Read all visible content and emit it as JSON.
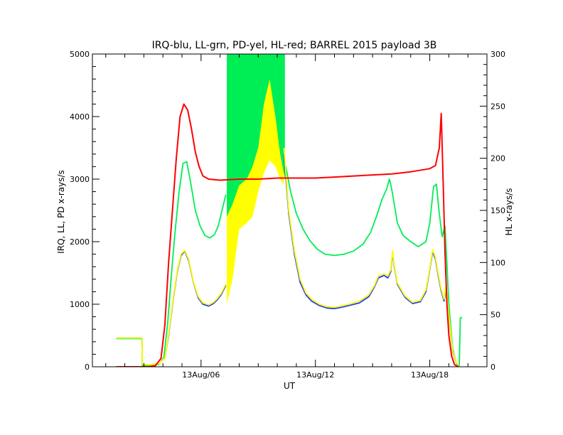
{
  "chart_data": {
    "type": "line",
    "title": "IRQ-blu, LL-grn, PD-yel, HL-red; BARREL 2015 payload 3B",
    "xlabel": "UT",
    "ylabel_left": "IRQ, LL, PD x-rays/s",
    "ylabel_right": "HL x-rays/s",
    "x_unit": "hours since 2015-08-13T00 (UT)",
    "xlim": [
      0.3,
      21.0
    ],
    "ylim_left": [
      0,
      5000
    ],
    "ylim_right": [
      0,
      300
    ],
    "x_tick_labels": [
      {
        "x": 6,
        "label": "13Aug/06"
      },
      {
        "x": 12,
        "label": "13Aug/12"
      },
      {
        "x": 18,
        "label": "13Aug/18"
      }
    ],
    "left_ticks": [
      0,
      1000,
      2000,
      3000,
      4000,
      5000
    ],
    "left_tick_labels": [
      "0",
      "1000",
      "2000",
      "3000",
      "4000",
      "5000"
    ],
    "right_ticks": [
      0,
      50,
      100,
      150,
      200,
      250,
      300
    ],
    "right_tick_labels": [
      "0",
      "50",
      "100",
      "150",
      "200",
      "250",
      "300"
    ],
    "grid": false,
    "series": [
      {
        "name": "IRQ",
        "color": "#1e3cff",
        "axis": "left",
        "points": [
          [
            1.55,
            460
          ],
          [
            2.9,
            460
          ],
          [
            2.92,
            40
          ],
          [
            3.3,
            30
          ],
          [
            3.8,
            50
          ],
          [
            4.1,
            140
          ],
          [
            4.3,
            500
          ],
          [
            4.55,
            1100
          ],
          [
            4.75,
            1520
          ],
          [
            4.95,
            1780
          ],
          [
            5.15,
            1850
          ],
          [
            5.35,
            1700
          ],
          [
            5.6,
            1350
          ],
          [
            5.85,
            1100
          ],
          [
            6.1,
            1000
          ],
          [
            6.4,
            970
          ],
          [
            6.65,
            1010
          ],
          [
            6.85,
            1070
          ],
          [
            7.05,
            1150
          ],
          [
            7.3,
            1300
          ]
        ]
      },
      {
        "name": "IRQ",
        "color": "#1e3cff",
        "axis": "left",
        "points": [
          [
            10.35,
            3400
          ],
          [
            10.6,
            2450
          ],
          [
            10.9,
            1800
          ],
          [
            11.2,
            1350
          ],
          [
            11.5,
            1150
          ],
          [
            11.8,
            1050
          ],
          [
            12.2,
            980
          ],
          [
            12.6,
            940
          ],
          [
            13.0,
            930
          ],
          [
            13.5,
            960
          ],
          [
            13.9,
            990
          ],
          [
            14.3,
            1020
          ],
          [
            14.8,
            1120
          ],
          [
            15.1,
            1280
          ],
          [
            15.3,
            1420
          ],
          [
            15.6,
            1460
          ],
          [
            15.8,
            1420
          ],
          [
            15.95,
            1520
          ],
          [
            16.05,
            1830
          ],
          [
            16.12,
            1640
          ],
          [
            16.3,
            1320
          ],
          [
            16.7,
            1110
          ],
          [
            17.1,
            1010
          ],
          [
            17.5,
            1040
          ],
          [
            17.8,
            1200
          ],
          [
            18.0,
            1560
          ],
          [
            18.15,
            1840
          ],
          [
            18.3,
            1720
          ],
          [
            18.45,
            1450
          ],
          [
            18.6,
            1210
          ],
          [
            18.75,
            1050
          ],
          [
            18.85,
            1250
          ],
          [
            19.0,
            800
          ],
          [
            19.2,
            250
          ],
          [
            19.4,
            50
          ],
          [
            19.55,
            20
          ]
        ]
      },
      {
        "name": "LL",
        "color": "#00ee55",
        "axis": "left",
        "points": [
          [
            1.55,
            450
          ],
          [
            2.9,
            450
          ],
          [
            2.92,
            20
          ],
          [
            3.3,
            15
          ],
          [
            3.8,
            40
          ],
          [
            4.05,
            150
          ],
          [
            4.25,
            700
          ],
          [
            4.45,
            1500
          ],
          [
            4.65,
            2200
          ],
          [
            4.85,
            2800
          ],
          [
            5.05,
            3250
          ],
          [
            5.25,
            3280
          ],
          [
            5.45,
            2950
          ],
          [
            5.7,
            2500
          ],
          [
            5.95,
            2250
          ],
          [
            6.2,
            2100
          ],
          [
            6.45,
            2060
          ],
          [
            6.7,
            2110
          ],
          [
            6.9,
            2250
          ],
          [
            7.1,
            2500
          ],
          [
            7.3,
            2750
          ]
        ]
      },
      {
        "name": "LL",
        "color": "#00ee55",
        "axis": "left",
        "points": [
          [
            10.45,
            3200
          ],
          [
            10.7,
            2800
          ],
          [
            11.0,
            2450
          ],
          [
            11.35,
            2200
          ],
          [
            11.7,
            2020
          ],
          [
            12.1,
            1880
          ],
          [
            12.5,
            1800
          ],
          [
            13.0,
            1780
          ],
          [
            13.5,
            1800
          ],
          [
            14.0,
            1850
          ],
          [
            14.5,
            1960
          ],
          [
            14.9,
            2150
          ],
          [
            15.2,
            2400
          ],
          [
            15.5,
            2680
          ],
          [
            15.75,
            2850
          ],
          [
            15.88,
            3000
          ],
          [
            15.95,
            2920
          ],
          [
            16.05,
            2760
          ],
          [
            16.3,
            2300
          ],
          [
            16.6,
            2100
          ],
          [
            17.0,
            2000
          ],
          [
            17.4,
            1920
          ],
          [
            17.8,
            2000
          ],
          [
            18.0,
            2300
          ],
          [
            18.2,
            2880
          ],
          [
            18.35,
            2920
          ],
          [
            18.5,
            2450
          ],
          [
            18.65,
            2080
          ],
          [
            18.8,
            2250
          ],
          [
            18.9,
            1650
          ],
          [
            19.0,
            1000
          ],
          [
            19.2,
            300
          ],
          [
            19.4,
            50
          ],
          [
            19.55,
            20
          ],
          [
            19.6,
            780
          ],
          [
            19.7,
            790
          ]
        ]
      },
      {
        "name": "PD",
        "color": "#ffff00",
        "axis": "left",
        "points": [
          [
            1.55,
            460
          ],
          [
            2.9,
            460
          ],
          [
            2.92,
            40
          ],
          [
            3.3,
            30
          ],
          [
            3.8,
            50
          ],
          [
            4.1,
            140
          ],
          [
            4.3,
            520
          ],
          [
            4.55,
            1120
          ],
          [
            4.75,
            1540
          ],
          [
            4.95,
            1800
          ],
          [
            5.15,
            1860
          ],
          [
            5.35,
            1720
          ],
          [
            5.6,
            1360
          ],
          [
            5.85,
            1120
          ],
          [
            6.1,
            1020
          ],
          [
            6.4,
            990
          ],
          [
            6.65,
            1030
          ],
          [
            6.85,
            1090
          ],
          [
            7.05,
            1170
          ],
          [
            7.3,
            1320
          ]
        ]
      },
      {
        "name": "PD",
        "color": "#ffff00",
        "axis": "left",
        "points": [
          [
            10.35,
            3500
          ],
          [
            10.6,
            2500
          ],
          [
            10.9,
            1850
          ],
          [
            11.2,
            1400
          ],
          [
            11.5,
            1180
          ],
          [
            11.8,
            1080
          ],
          [
            12.2,
            1000
          ],
          [
            12.6,
            960
          ],
          [
            13.0,
            950
          ],
          [
            13.5,
            980
          ],
          [
            13.9,
            1010
          ],
          [
            14.3,
            1050
          ],
          [
            14.8,
            1150
          ],
          [
            15.1,
            1300
          ],
          [
            15.3,
            1450
          ],
          [
            15.6,
            1490
          ],
          [
            15.8,
            1450
          ],
          [
            15.95,
            1550
          ],
          [
            16.05,
            1850
          ],
          [
            16.12,
            1660
          ],
          [
            16.3,
            1340
          ],
          [
            16.7,
            1130
          ],
          [
            17.1,
            1030
          ],
          [
            17.5,
            1060
          ],
          [
            17.8,
            1230
          ],
          [
            18.0,
            1580
          ],
          [
            18.15,
            1870
          ],
          [
            18.3,
            1750
          ],
          [
            18.45,
            1480
          ],
          [
            18.6,
            1240
          ],
          [
            18.75,
            1080
          ],
          [
            18.85,
            1300
          ],
          [
            19.0,
            820
          ],
          [
            19.2,
            260
          ],
          [
            19.4,
            60
          ],
          [
            19.55,
            30
          ]
        ]
      },
      {
        "name": "HL",
        "color": "#ff0000",
        "axis": "right",
        "points": [
          [
            1.55,
            0
          ],
          [
            3.2,
            0
          ],
          [
            3.6,
            1
          ],
          [
            3.9,
            8
          ],
          [
            4.1,
            40
          ],
          [
            4.3,
            100
          ],
          [
            4.5,
            150
          ],
          [
            4.7,
            200
          ],
          [
            4.9,
            240
          ],
          [
            5.1,
            252
          ],
          [
            5.3,
            246
          ],
          [
            5.5,
            228
          ],
          [
            5.7,
            206
          ],
          [
            5.9,
            192
          ],
          [
            6.1,
            183
          ],
          [
            6.4,
            180
          ],
          [
            7.0,
            179
          ],
          [
            8.0,
            180
          ],
          [
            9.0,
            180
          ],
          [
            10.0,
            181
          ],
          [
            11.0,
            181
          ],
          [
            12.0,
            181
          ],
          [
            13.0,
            182
          ],
          [
            14.0,
            183
          ],
          [
            15.0,
            184
          ],
          [
            16.0,
            185
          ],
          [
            17.0,
            187
          ],
          [
            18.0,
            190
          ],
          [
            18.3,
            193
          ],
          [
            18.5,
            210
          ],
          [
            18.6,
            243
          ],
          [
            18.7,
            180
          ],
          [
            18.8,
            110
          ],
          [
            18.9,
            60
          ],
          [
            19.0,
            30
          ],
          [
            19.15,
            10
          ],
          [
            19.3,
            2
          ],
          [
            19.5,
            0
          ]
        ]
      }
    ],
    "bands": [
      {
        "name": "PD",
        "color": "#ffff00",
        "axis": "left",
        "points": [
          [
            7.35,
            1000,
            4300
          ],
          [
            7.65,
            1400,
            4800
          ],
          [
            8.0,
            2200,
            5000
          ],
          [
            8.4,
            2300,
            5000
          ],
          [
            8.7,
            2400,
            5000
          ],
          [
            9.0,
            2800,
            5000
          ],
          [
            9.3,
            3100,
            5000
          ],
          [
            9.6,
            3300,
            5000
          ],
          [
            9.9,
            3200,
            5000
          ],
          [
            10.15,
            3000,
            5000
          ],
          [
            10.35,
            2900,
            5000
          ]
        ]
      },
      {
        "name": "LL",
        "color": "#00ee55",
        "axis": "left",
        "points": [
          [
            7.35,
            2400,
            5000
          ],
          [
            7.65,
            2600,
            5000
          ],
          [
            8.0,
            2900,
            5000
          ],
          [
            8.4,
            3000,
            5000
          ],
          [
            8.7,
            3200,
            5000
          ],
          [
            9.0,
            3500,
            5000
          ],
          [
            9.3,
            4200,
            5000
          ],
          [
            9.6,
            4600,
            5000
          ],
          [
            9.9,
            4000,
            5000
          ],
          [
            10.15,
            3400,
            5000
          ],
          [
            10.4,
            3000,
            5000
          ]
        ]
      }
    ]
  }
}
